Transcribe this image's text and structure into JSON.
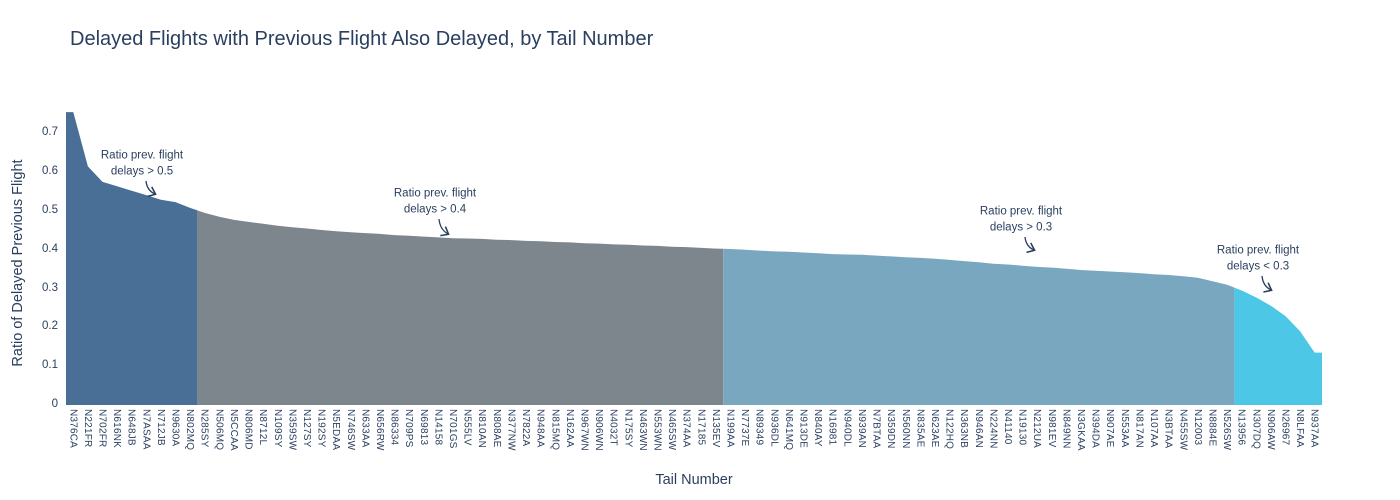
{
  "title": "Delayed Flights with Previous Flight Also Delayed, by Tail Number",
  "text_color": "#2a3f5f",
  "background_color": "#ffffff",
  "chart_data": {
    "type": "area",
    "title": "Delayed Flights with Previous Flight Also Delayed, by Tail Number",
    "xlabel": "Tail Number",
    "ylabel": "Ratio of Delayed Previous Flight",
    "ylim": [
      0,
      0.78
    ],
    "yticks": [
      "0",
      "0.1",
      "0.2",
      "0.3",
      "0.4",
      "0.5",
      "0.6",
      "0.7"
    ],
    "grid": false,
    "legend_position": "none",
    "categories": [
      "N376CA",
      "N221FR",
      "N702FR",
      "N616NK",
      "N648JB",
      "N7ASAA",
      "N712JB",
      "N9630A",
      "N802MQ",
      "N285SY",
      "N506MQ",
      "N5CCAA",
      "N806MD",
      "N8712L",
      "N109SY",
      "N359SW",
      "N127SY",
      "N192SY",
      "N5EDAA",
      "N746SW",
      "N633AA",
      "N656RW",
      "N86334",
      "N709PS",
      "N69813",
      "N14158",
      "N701GS",
      "N555LV",
      "N810AN",
      "N808AE",
      "N377NW",
      "N7822A",
      "N948AA",
      "N815MQ",
      "N162AA",
      "N967WN",
      "N906WN",
      "N4032T",
      "N175SY",
      "N463WN",
      "N553WN",
      "N465SW",
      "N374AA",
      "N17185",
      "N135EV",
      "N199AA",
      "N7737E",
      "N89349",
      "N936DL",
      "N641MQ",
      "N913DE",
      "N840AY",
      "N16981",
      "N940DL",
      "N939AN",
      "N7BTAA",
      "N359DN",
      "N560NN",
      "N835AE",
      "N623AE",
      "N122HQ",
      "N363NB",
      "N946AN",
      "N224NN",
      "N41140",
      "N19130",
      "N212UA",
      "N981EV",
      "N849NN",
      "N3GKAA",
      "N394DA",
      "N907AE",
      "N553AA",
      "N817AN",
      "N107AA",
      "N3BTAA",
      "N455SW",
      "N12003",
      "N8884E",
      "N526SW",
      "N13956",
      "N307DQ",
      "N906AW",
      "N26967",
      "N8LFAA",
      "N937AA"
    ],
    "values": [
      0.755,
      0.615,
      0.575,
      0.564,
      0.552,
      0.541,
      0.529,
      0.523,
      0.508,
      0.495,
      0.485,
      0.477,
      0.472,
      0.467,
      0.462,
      0.458,
      0.455,
      0.451,
      0.448,
      0.445,
      0.443,
      0.441,
      0.438,
      0.436,
      0.434,
      0.432,
      0.43,
      0.429,
      0.428,
      0.426,
      0.425,
      0.423,
      0.422,
      0.42,
      0.419,
      0.417,
      0.416,
      0.414,
      0.413,
      0.411,
      0.41,
      0.408,
      0.407,
      0.405,
      0.403,
      0.402,
      0.4,
      0.398,
      0.396,
      0.395,
      0.393,
      0.391,
      0.389,
      0.388,
      0.387,
      0.385,
      0.383,
      0.381,
      0.379,
      0.377,
      0.374,
      0.371,
      0.368,
      0.364,
      0.362,
      0.359,
      0.356,
      0.354,
      0.351,
      0.348,
      0.346,
      0.344,
      0.342,
      0.34,
      0.337,
      0.335,
      0.332,
      0.328,
      0.319,
      0.31,
      0.295,
      0.277,
      0.256,
      0.229,
      0.19,
      0.135
    ],
    "segments": [
      {
        "name": "ratio-gt-0.5",
        "threshold": "> 0.5",
        "color": "#4a6f96",
        "start_index": 0,
        "end_index": 8
      },
      {
        "name": "ratio-gt-0.4",
        "threshold": "> 0.4",
        "color": "#7d858d",
        "start_index": 9,
        "end_index": 44
      },
      {
        "name": "ratio-gt-0.3",
        "threshold": "> 0.3",
        "color": "#7aa7c0",
        "start_index": 45,
        "end_index": 79
      },
      {
        "name": "ratio-lt-0.3",
        "threshold": "< 0.3",
        "color": "#4cc8e6",
        "start_index": 80,
        "end_index": 85
      }
    ],
    "annotations": [
      {
        "line1": "Ratio prev. flight",
        "line2": "delays > 0.5",
        "cx": 142,
        "cy": 164,
        "tx": 155,
        "ty": 194
      },
      {
        "line1": "Ratio prev. flight",
        "line2": "delays > 0.4",
        "cx": 435,
        "cy": 202,
        "tx": 448,
        "ty": 234
      },
      {
        "line1": "Ratio prev. flight",
        "line2": "delays > 0.3",
        "cx": 1021,
        "cy": 220,
        "tx": 1034,
        "ty": 250
      },
      {
        "line1": "Ratio prev. flight",
        "line2": "delays < 0.3",
        "cx": 1258,
        "cy": 259,
        "tx": 1271,
        "ty": 290
      }
    ]
  }
}
